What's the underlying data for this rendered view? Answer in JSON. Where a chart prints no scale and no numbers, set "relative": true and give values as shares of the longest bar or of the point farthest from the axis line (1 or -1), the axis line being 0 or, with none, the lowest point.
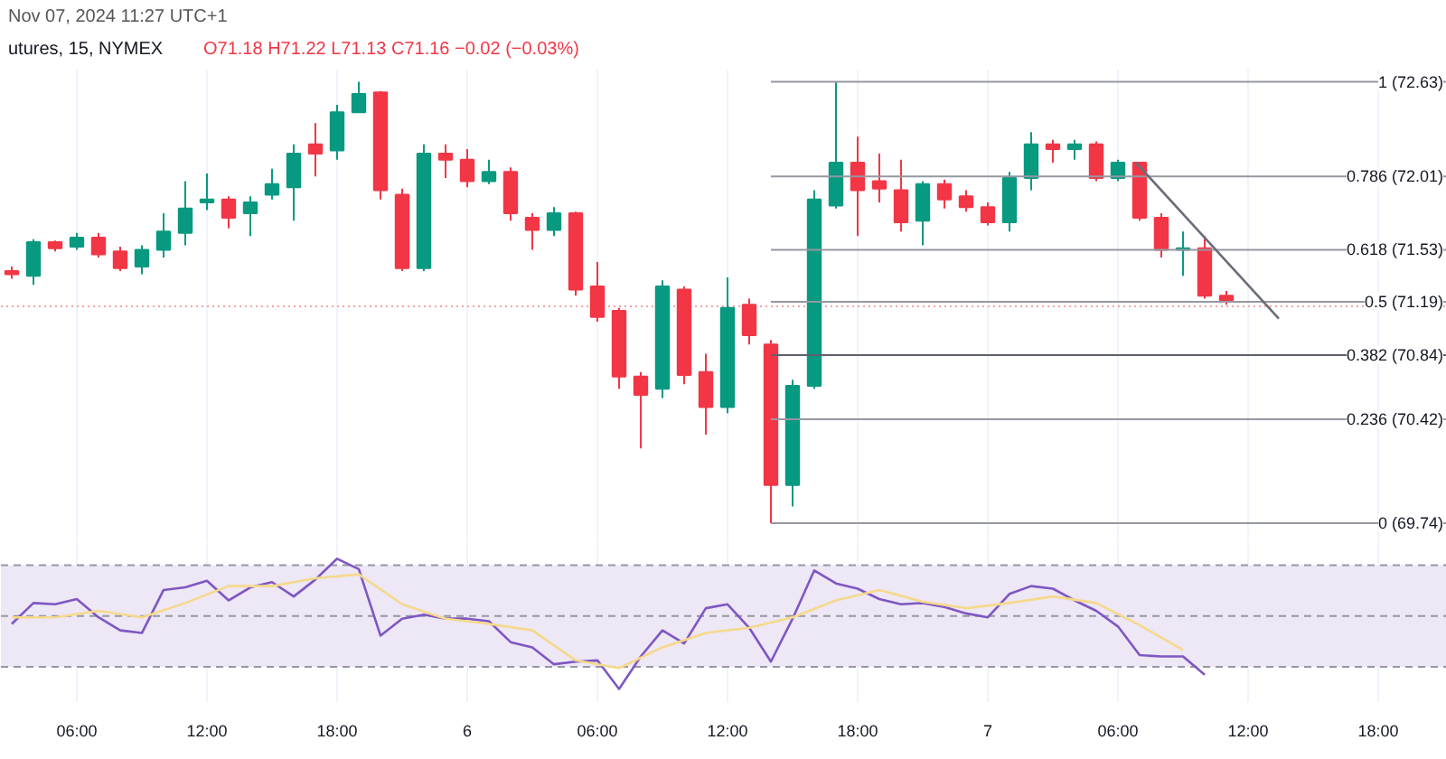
{
  "chart_data": [
    {
      "type": "candlestick",
      "annotations": [
        "Nov 07, 2024 11:27 UTC+1",
        "utures, 15, NYMEX",
        "O71.18 H71.22 L71.13 C71.16 −0.02 (−0.03%)"
      ],
      "x": [
        "2024-11-05T03:00",
        "2024-11-05T04:00",
        "2024-11-05T05:00",
        "2024-11-05T06:00",
        "2024-11-05T07:00",
        "2024-11-05T08:00",
        "2024-11-05T09:00",
        "2024-11-05T10:00",
        "2024-11-05T11:00",
        "2024-11-05T12:00",
        "2024-11-05T13:00",
        "2024-11-05T14:00",
        "2024-11-05T15:00",
        "2024-11-05T16:00",
        "2024-11-05T17:00",
        "2024-11-05T18:00",
        "2024-11-05T19:00",
        "2024-11-05T20:00",
        "2024-11-05T21:00",
        "2024-11-05T22:00",
        "2024-11-05T23:00",
        "2024-11-06T00:00",
        "2024-11-06T01:00",
        "2024-11-06T02:00",
        "2024-11-06T03:00",
        "2024-11-06T04:00",
        "2024-11-06T05:00",
        "2024-11-06T06:00",
        "2024-11-06T07:00",
        "2024-11-06T08:00",
        "2024-11-06T09:00",
        "2024-11-06T10:00",
        "2024-11-06T11:00",
        "2024-11-06T12:00",
        "2024-11-06T13:00",
        "2024-11-06T14:00",
        "2024-11-06T15:00",
        "2024-11-06T16:00",
        "2024-11-06T17:00",
        "2024-11-06T18:00",
        "2024-11-06T19:00",
        "2024-11-06T20:00",
        "2024-11-06T21:00",
        "2024-11-06T22:00",
        "2024-11-06T23:00",
        "2024-11-07T00:00",
        "2024-11-07T01:00",
        "2024-11-07T02:00",
        "2024-11-07T03:00",
        "2024-11-07T04:00",
        "2024-11-07T05:00",
        "2024-11-07T06:00",
        "2024-11-07T07:00",
        "2024-11-07T08:00",
        "2024-11-07T09:00",
        "2024-11-07T10:00",
        "2024-11-07T11:00"
      ],
      "ohlc": [
        [
          71.39,
          71.42,
          71.34,
          71.37
        ],
        [
          71.36,
          71.6,
          71.3,
          71.58
        ],
        [
          71.58,
          71.59,
          71.52,
          71.54
        ],
        [
          71.55,
          71.64,
          71.53,
          71.61
        ],
        [
          71.61,
          71.64,
          71.48,
          71.5
        ],
        [
          71.52,
          71.55,
          71.39,
          71.41
        ],
        [
          71.42,
          71.56,
          71.37,
          71.53
        ],
        [
          71.53,
          71.77,
          71.48,
          71.65
        ],
        [
          71.64,
          71.98,
          71.56,
          71.8
        ],
        [
          71.84,
          72.03,
          71.79,
          71.86
        ],
        [
          71.86,
          71.88,
          71.67,
          71.74
        ],
        [
          71.77,
          71.88,
          71.62,
          71.84
        ],
        [
          71.89,
          72.06,
          71.86,
          71.96
        ],
        [
          71.94,
          72.22,
          71.72,
          72.16
        ],
        [
          72.22,
          72.36,
          72.01,
          72.16
        ],
        [
          72.18,
          72.48,
          72.12,
          72.43
        ],
        [
          72.43,
          72.63,
          72.43,
          72.55
        ],
        [
          72.56,
          72.57,
          71.86,
          71.92
        ],
        [
          71.89,
          71.93,
          71.39,
          71.41
        ],
        [
          71.41,
          72.22,
          71.39,
          72.16
        ],
        [
          72.16,
          72.22,
          72.0,
          72.12
        ],
        [
          72.12,
          72.19,
          71.94,
          71.98
        ],
        [
          71.98,
          72.12,
          71.96,
          72.04
        ],
        [
          72.04,
          72.07,
          71.72,
          71.77
        ],
        [
          71.74,
          71.77,
          71.53,
          71.66
        ],
        [
          71.66,
          71.81,
          71.62,
          71.77
        ],
        [
          71.77,
          71.78,
          71.23,
          71.27
        ],
        [
          71.29,
          71.45,
          71.06,
          71.09
        ],
        [
          71.13,
          71.15,
          70.62,
          70.7
        ],
        [
          70.7,
          70.73,
          70.23,
          70.58
        ],
        [
          70.62,
          71.33,
          70.56,
          71.29
        ],
        [
          71.27,
          71.29,
          70.65,
          70.71
        ],
        [
          70.73,
          70.85,
          70.32,
          70.5
        ],
        [
          70.5,
          71.35,
          70.46,
          71.15
        ],
        [
          71.17,
          71.21,
          70.91,
          70.97
        ],
        [
          70.91,
          70.94,
          69.74,
          69.99
        ],
        [
          69.99,
          70.68,
          69.85,
          70.64
        ],
        [
          70.64,
          71.92,
          70.62,
          71.86
        ],
        [
          71.82,
          72.63,
          71.8,
          72.1
        ],
        [
          72.1,
          72.27,
          71.62,
          71.92
        ],
        [
          71.98,
          72.16,
          71.84,
          71.93
        ],
        [
          71.92,
          72.12,
          71.65,
          71.71
        ],
        [
          71.72,
          71.98,
          71.56,
          71.96
        ],
        [
          71.96,
          71.99,
          71.8,
          71.86
        ],
        [
          71.88,
          71.92,
          71.78,
          71.81
        ],
        [
          71.81,
          71.84,
          71.69,
          71.71
        ],
        [
          71.71,
          72.04,
          71.65,
          72.0
        ],
        [
          72.0,
          72.3,
          71.92,
          72.22
        ],
        [
          72.22,
          72.25,
          72.1,
          72.19
        ],
        [
          72.19,
          72.25,
          72.12,
          72.22
        ],
        [
          72.22,
          72.24,
          71.98,
          72.0
        ],
        [
          72.0,
          72.12,
          71.98,
          72.1
        ],
        [
          72.1,
          72.1,
          71.72,
          71.74
        ],
        [
          71.74,
          71.77,
          71.48,
          71.53
        ],
        [
          71.53,
          71.65,
          71.36,
          71.54
        ],
        [
          71.54,
          71.62,
          71.21,
          71.23
        ],
        [
          71.23,
          71.26,
          71.17,
          71.2
        ]
      ],
      "colors": [
        "#f23645",
        "#089981",
        "#f23645",
        "#089981",
        "#f23645",
        "#f23645",
        "#089981",
        "#089981",
        "#089981",
        "#089981",
        "#f23645",
        "#089981",
        "#089981",
        "#089981",
        "#f23645",
        "#089981",
        "#089981",
        "#f23645",
        "#f23645",
        "#089981",
        "#f23645",
        "#f23645",
        "#089981",
        "#f23645",
        "#f23645",
        "#089981",
        "#f23645",
        "#f23645",
        "#f23645",
        "#f23645",
        "#089981",
        "#f23645",
        "#f23645",
        "#089981",
        "#f23645",
        "#f23645",
        "#089981",
        "#089981",
        "#089981",
        "#f23645",
        "#f23645",
        "#f23645",
        "#089981",
        "#f23645",
        "#f23645",
        "#f23645",
        "#089981",
        "#089981",
        "#f23645",
        "#089981",
        "#f23645",
        "#089981",
        "#f23645",
        "#f23645",
        "#089981",
        "#f23645",
        "#f23645"
      ],
      "series": [
        {
          "type": "line",
          "x": [
            "2024-11-07T06:50",
            "2024-11-07T13:25"
          ],
          "values": [
            72.1,
            71.08
          ],
          "color": "#6a6d78"
        }
      ],
      "ref_lines": [
        {
          "axis": "y",
          "value": 72.63,
          "label": "1 (72.63)",
          "color": "#9598a1"
        },
        {
          "axis": "y",
          "value": 72.01,
          "label": "0.786 (72.01)",
          "color": "#9598a1"
        },
        {
          "axis": "y",
          "value": 71.53,
          "label": "0.618 (71.53)",
          "color": "#9598a1"
        },
        {
          "axis": "y",
          "value": 71.19,
          "label": "0.5 (71.19)",
          "color": "#9598a1"
        },
        {
          "axis": "y",
          "value": 70.84,
          "label": "0.382 (70.84)",
          "color": "#5d606b"
        },
        {
          "axis": "y",
          "value": 70.42,
          "label": "0.236 (70.42)",
          "color": "#9598a1"
        },
        {
          "axis": "y",
          "value": 69.74,
          "label": "0 (69.74)",
          "color": "#9598a1"
        },
        {
          "axis": "y",
          "value": 71.16,
          "color": "#f7a1a8",
          "line_style": "dotted"
        }
      ],
      "xlim": [
        "2024-11-05T02:30",
        "2024-11-07T21:10"
      ],
      "ylim": [
        69.61,
        72.71
      ],
      "xticks": [
        {
          "value": "2024-11-05T06:00",
          "label": null
        },
        {
          "value": "2024-11-05T12:00",
          "label": null
        },
        {
          "value": "2024-11-05T18:00",
          "label": null
        },
        {
          "value": "2024-11-06T00:00",
          "label": null
        },
        {
          "value": "2024-11-06T06:00",
          "label": null
        },
        {
          "value": "2024-11-06T12:00",
          "label": null
        },
        {
          "value": "2024-11-06T18:00",
          "label": null
        },
        {
          "value": "2024-11-07T00:00",
          "label": null
        },
        {
          "value": "2024-11-07T06:00",
          "label": null
        },
        {
          "value": "2024-11-07T12:00",
          "label": null
        },
        {
          "value": "2024-11-07T18:00",
          "label": null
        }
      ],
      "tick_labels": false,
      "grid": "x"
    },
    {
      "type": "line",
      "relative": true,
      "x": [
        "2024-11-05T03:00",
        "2024-11-05T04:00",
        "2024-11-05T05:00",
        "2024-11-05T06:00",
        "2024-11-05T07:00",
        "2024-11-05T08:00",
        "2024-11-05T09:00",
        "2024-11-05T10:00",
        "2024-11-05T11:00",
        "2024-11-05T12:00",
        "2024-11-05T13:00",
        "2024-11-05T14:00",
        "2024-11-05T15:00",
        "2024-11-05T16:00",
        "2024-11-05T17:00",
        "2024-11-05T18:00",
        "2024-11-05T19:00",
        "2024-11-05T20:00",
        "2024-11-05T21:00",
        "2024-11-05T22:00",
        "2024-11-05T23:00",
        "2024-11-06T00:00",
        "2024-11-06T01:00",
        "2024-11-06T02:00",
        "2024-11-06T03:00",
        "2024-11-06T04:00",
        "2024-11-06T05:00",
        "2024-11-06T06:00",
        "2024-11-06T07:00",
        "2024-11-06T08:00",
        "2024-11-06T09:00",
        "2024-11-06T10:00",
        "2024-11-06T11:00",
        "2024-11-06T12:00",
        "2024-11-06T13:00",
        "2024-11-06T14:00",
        "2024-11-06T15:00",
        "2024-11-06T16:00",
        "2024-11-06T17:00",
        "2024-11-06T18:00",
        "2024-11-06T19:00",
        "2024-11-06T20:00",
        "2024-11-06T21:00",
        "2024-11-06T22:00",
        "2024-11-06T23:00",
        "2024-11-07T00:00",
        "2024-11-07T01:00",
        "2024-11-07T02:00",
        "2024-11-07T03:00",
        "2024-11-07T04:00",
        "2024-11-07T05:00",
        "2024-11-07T06:00",
        "2024-11-07T07:00",
        "2024-11-07T08:00",
        "2024-11-07T09:00",
        "2024-11-07T10:00"
      ],
      "series": [
        {
          "color": "#7e57c2",
          "values": [
            0.5,
            0.66,
            0.65,
            0.69,
            0.55,
            0.45,
            0.43,
            0.76,
            0.78,
            0.83,
            0.68,
            0.78,
            0.82,
            0.71,
            0.84,
            1.0,
            0.92,
            0.41,
            0.54,
            0.57,
            0.54,
            0.54,
            0.52,
            0.36,
            0.32,
            0.19,
            0.21,
            0.22,
            0.0,
            0.25,
            0.45,
            0.35,
            0.62,
            0.65,
            0.47,
            0.21,
            0.54,
            0.91,
            0.81,
            0.77,
            0.69,
            0.65,
            0.66,
            0.63,
            0.58,
            0.55,
            0.73,
            0.79,
            0.77,
            0.68,
            0.6,
            0.48,
            0.26,
            0.25,
            0.25,
            0.11
          ]
        },
        {
          "color": "#f5d98b",
          "x": [
            "2024-11-05T03:00",
            "2024-11-05T05:00",
            "2024-11-05T07:00",
            "2024-11-05T09:00",
            "2024-11-05T11:00",
            "2024-11-05T13:00",
            "2024-11-05T15:00",
            "2024-11-05T17:00",
            "2024-11-05T19:00",
            "2024-11-05T21:00",
            "2024-11-05T23:00",
            "2024-11-06T01:00",
            "2024-11-06T03:00",
            "2024-11-06T05:00",
            "2024-11-06T07:00",
            "2024-11-06T09:00",
            "2024-11-06T11:00",
            "2024-11-06T13:00",
            "2024-11-06T15:00",
            "2024-11-06T17:00",
            "2024-11-06T19:00",
            "2024-11-06T21:00",
            "2024-11-06T23:00",
            "2024-11-07T01:00",
            "2024-11-07T03:00",
            "2024-11-07T05:00",
            "2024-11-07T07:00",
            "2024-11-07T09:00"
          ],
          "values": [
            0.55,
            0.55,
            0.6,
            0.55,
            0.66,
            0.79,
            0.79,
            0.85,
            0.88,
            0.65,
            0.54,
            0.5,
            0.45,
            0.22,
            0.16,
            0.32,
            0.43,
            0.47,
            0.55,
            0.68,
            0.76,
            0.67,
            0.62,
            0.66,
            0.71,
            0.66,
            0.49,
            0.3
          ]
        }
      ],
      "bands": [
        {
          "axis": "y",
          "from": 0.17,
          "to": 0.95,
          "color": "#ede7f6"
        }
      ],
      "ref_lines": [
        {
          "axis": "y",
          "value": 0.95,
          "color": "#9598a1",
          "line_style": "dashed"
        },
        {
          "axis": "y",
          "value": 0.56,
          "color": "#9598a1",
          "line_style": "dashed"
        },
        {
          "axis": "y",
          "value": 0.17,
          "color": "#9598a1",
          "line_style": "dashed"
        }
      ],
      "xlim": [
        "2024-11-05T02:30",
        "2024-11-07T21:10"
      ],
      "xticks": [
        {
          "value": "2024-11-05T06:00",
          "label": "06:00"
        },
        {
          "value": "2024-11-05T12:00",
          "label": "12:00"
        },
        {
          "value": "2024-11-05T18:00",
          "label": "18:00"
        },
        {
          "value": "2024-11-06T00:00",
          "label": "6"
        },
        {
          "value": "2024-11-06T06:00",
          "label": "06:00"
        },
        {
          "value": "2024-11-06T12:00",
          "label": "12:00"
        },
        {
          "value": "2024-11-06T18:00",
          "label": "18:00"
        },
        {
          "value": "2024-11-07T00:00",
          "label": "7"
        },
        {
          "value": "2024-11-07T06:00",
          "label": "06:00"
        },
        {
          "value": "2024-11-07T12:00",
          "label": "12:00"
        },
        {
          "value": "2024-11-07T18:00",
          "label": "18:00"
        }
      ],
      "tick_labels": "x",
      "grid": "x"
    }
  ]
}
